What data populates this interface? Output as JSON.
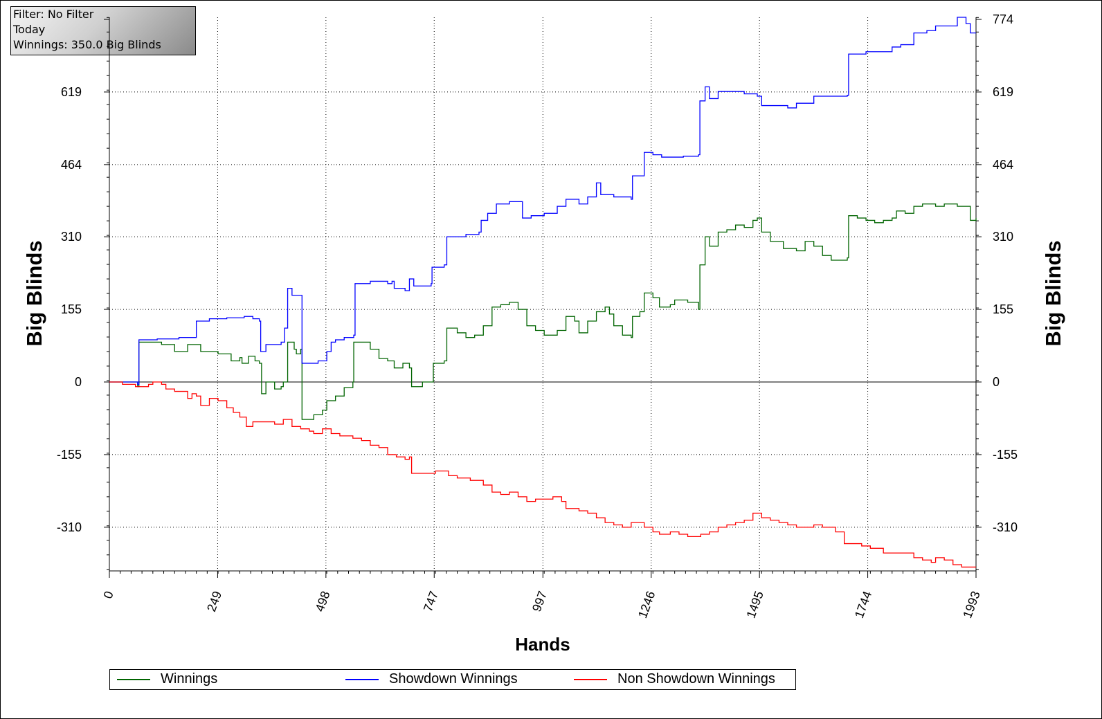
{
  "info": {
    "filter": "Filter: No Filter",
    "period": "Today",
    "winnings": "Winnings: 350.0 Big Blinds"
  },
  "chart_data": {
    "type": "line",
    "title": "",
    "xlabel": "Hands",
    "ylabel": "Big Blinds",
    "xlim": [
      0,
      1993
    ],
    "ylim": [
      -400,
      774
    ],
    "x_ticks": [
      0,
      249,
      498,
      747,
      997,
      1246,
      1495,
      1744,
      1993
    ],
    "y_ticks": [
      -310,
      -155,
      0,
      155,
      310,
      464,
      619,
      774
    ],
    "grid": true,
    "legend_position": "bottom",
    "series": [
      {
        "name": "Winnings",
        "color": "#006400",
        "points": [
          [
            0,
            0
          ],
          [
            65,
            -10
          ],
          [
            68,
            85
          ],
          [
            120,
            80
          ],
          [
            150,
            65
          ],
          [
            180,
            80
          ],
          [
            210,
            65
          ],
          [
            250,
            60
          ],
          [
            280,
            45
          ],
          [
            300,
            52
          ],
          [
            305,
            40
          ],
          [
            320,
            55
          ],
          [
            335,
            45
          ],
          [
            345,
            40
          ],
          [
            350,
            -25
          ],
          [
            360,
            0
          ],
          [
            380,
            -15
          ],
          [
            395,
            -10
          ],
          [
            400,
            0
          ],
          [
            405,
            0
          ],
          [
            410,
            85
          ],
          [
            425,
            70
          ],
          [
            430,
            60
          ],
          [
            440,
            70
          ],
          [
            443,
            -80
          ],
          [
            470,
            -70
          ],
          [
            490,
            -60
          ],
          [
            500,
            -40
          ],
          [
            520,
            -30
          ],
          [
            540,
            -12
          ],
          [
            560,
            0
          ],
          [
            562,
            85
          ],
          [
            600,
            70
          ],
          [
            620,
            50
          ],
          [
            640,
            45
          ],
          [
            655,
            30
          ],
          [
            675,
            40
          ],
          [
            690,
            30
          ],
          [
            695,
            -10
          ],
          [
            720,
            0
          ],
          [
            742,
            0
          ],
          [
            745,
            40
          ],
          [
            770,
            45
          ],
          [
            776,
            115
          ],
          [
            800,
            105
          ],
          [
            820,
            95
          ],
          [
            840,
            100
          ],
          [
            860,
            120
          ],
          [
            880,
            160
          ],
          [
            900,
            165
          ],
          [
            920,
            170
          ],
          [
            940,
            155
          ],
          [
            960,
            120
          ],
          [
            980,
            110
          ],
          [
            1000,
            100
          ],
          [
            1030,
            110
          ],
          [
            1050,
            140
          ],
          [
            1070,
            130
          ],
          [
            1080,
            105
          ],
          [
            1100,
            130
          ],
          [
            1120,
            150
          ],
          [
            1140,
            160
          ],
          [
            1150,
            145
          ],
          [
            1160,
            120
          ],
          [
            1180,
            100
          ],
          [
            1200,
            95
          ],
          [
            1203,
            140
          ],
          [
            1220,
            150
          ],
          [
            1230,
            190
          ],
          [
            1250,
            180
          ],
          [
            1265,
            160
          ],
          [
            1290,
            165
          ],
          [
            1300,
            175
          ],
          [
            1330,
            170
          ],
          [
            1355,
            155
          ],
          [
            1358,
            250
          ],
          [
            1370,
            310
          ],
          [
            1380,
            290
          ],
          [
            1400,
            320
          ],
          [
            1420,
            325
          ],
          [
            1440,
            335
          ],
          [
            1460,
            330
          ],
          [
            1480,
            345
          ],
          [
            1490,
            350
          ],
          [
            1500,
            320
          ],
          [
            1520,
            300
          ],
          [
            1550,
            285
          ],
          [
            1580,
            280
          ],
          [
            1600,
            300
          ],
          [
            1620,
            290
          ],
          [
            1640,
            270
          ],
          [
            1660,
            260
          ],
          [
            1680,
            260
          ],
          [
            1697,
            265
          ],
          [
            1700,
            355
          ],
          [
            1720,
            350
          ],
          [
            1740,
            345
          ],
          [
            1760,
            340
          ],
          [
            1780,
            345
          ],
          [
            1800,
            350
          ],
          [
            1810,
            365
          ],
          [
            1830,
            360
          ],
          [
            1850,
            375
          ],
          [
            1870,
            380
          ],
          [
            1900,
            375
          ],
          [
            1920,
            380
          ],
          [
            1950,
            375
          ],
          [
            1975,
            375
          ],
          [
            1980,
            345
          ],
          [
            1993,
            350
          ]
        ]
      },
      {
        "name": "Showdown Winnings",
        "color": "#0000ff",
        "points": [
          [
            0,
            0
          ],
          [
            65,
            -5
          ],
          [
            68,
            90
          ],
          [
            110,
            92
          ],
          [
            160,
            95
          ],
          [
            200,
            130
          ],
          [
            230,
            135
          ],
          [
            270,
            137
          ],
          [
            300,
            137
          ],
          [
            310,
            140
          ],
          [
            330,
            135
          ],
          [
            345,
            130
          ],
          [
            348,
            65
          ],
          [
            360,
            80
          ],
          [
            380,
            80
          ],
          [
            395,
            85
          ],
          [
            400,
            85
          ],
          [
            403,
            115
          ],
          [
            410,
            200
          ],
          [
            420,
            185
          ],
          [
            430,
            185
          ],
          [
            440,
            185
          ],
          [
            443,
            40
          ],
          [
            480,
            45
          ],
          [
            500,
            65
          ],
          [
            510,
            85
          ],
          [
            520,
            90
          ],
          [
            540,
            95
          ],
          [
            562,
            100
          ],
          [
            565,
            210
          ],
          [
            600,
            215
          ],
          [
            640,
            210
          ],
          [
            650,
            215
          ],
          [
            655,
            200
          ],
          [
            680,
            195
          ],
          [
            690,
            220
          ],
          [
            700,
            205
          ],
          [
            740,
            210
          ],
          [
            742,
            245
          ],
          [
            770,
            250
          ],
          [
            776,
            310
          ],
          [
            820,
            315
          ],
          [
            850,
            320
          ],
          [
            855,
            345
          ],
          [
            870,
            360
          ],
          [
            890,
            380
          ],
          [
            920,
            385
          ],
          [
            945,
            385
          ],
          [
            950,
            350
          ],
          [
            970,
            355
          ],
          [
            1000,
            360
          ],
          [
            1030,
            375
          ],
          [
            1050,
            390
          ],
          [
            1080,
            380
          ],
          [
            1100,
            395
          ],
          [
            1120,
            425
          ],
          [
            1130,
            400
          ],
          [
            1160,
            395
          ],
          [
            1180,
            395
          ],
          [
            1200,
            390
          ],
          [
            1203,
            440
          ],
          [
            1230,
            490
          ],
          [
            1250,
            485
          ],
          [
            1270,
            480
          ],
          [
            1320,
            482
          ],
          [
            1355,
            485
          ],
          [
            1358,
            600
          ],
          [
            1370,
            630
          ],
          [
            1380,
            605
          ],
          [
            1400,
            620
          ],
          [
            1430,
            620
          ],
          [
            1460,
            615
          ],
          [
            1490,
            610
          ],
          [
            1500,
            590
          ],
          [
            1530,
            590
          ],
          [
            1560,
            585
          ],
          [
            1580,
            595
          ],
          [
            1600,
            595
          ],
          [
            1620,
            610
          ],
          [
            1660,
            610
          ],
          [
            1697,
            612
          ],
          [
            1700,
            700
          ],
          [
            1740,
            705
          ],
          [
            1780,
            705
          ],
          [
            1800,
            715
          ],
          [
            1820,
            720
          ],
          [
            1850,
            745
          ],
          [
            1880,
            750
          ],
          [
            1900,
            760
          ],
          [
            1930,
            760
          ],
          [
            1950,
            785
          ],
          [
            1970,
            765
          ],
          [
            1980,
            745
          ],
          [
            1993,
            745
          ]
        ]
      },
      {
        "name": "Non Showdown Winnings",
        "color": "#ff0000",
        "points": [
          [
            0,
            0
          ],
          [
            30,
            -5
          ],
          [
            60,
            -10
          ],
          [
            90,
            -5
          ],
          [
            100,
            0
          ],
          [
            120,
            -5
          ],
          [
            130,
            -15
          ],
          [
            150,
            -20
          ],
          [
            180,
            -35
          ],
          [
            190,
            -25
          ],
          [
            200,
            -30
          ],
          [
            210,
            -50
          ],
          [
            230,
            -35
          ],
          [
            250,
            -40
          ],
          [
            260,
            -40
          ],
          [
            270,
            -55
          ],
          [
            285,
            -65
          ],
          [
            300,
            -75
          ],
          [
            315,
            -95
          ],
          [
            330,
            -85
          ],
          [
            350,
            -85
          ],
          [
            380,
            -90
          ],
          [
            400,
            -80
          ],
          [
            420,
            -95
          ],
          [
            440,
            -100
          ],
          [
            460,
            -105
          ],
          [
            470,
            -110
          ],
          [
            490,
            -100
          ],
          [
            510,
            -110
          ],
          [
            530,
            -115
          ],
          [
            560,
            -120
          ],
          [
            580,
            -125
          ],
          [
            600,
            -135
          ],
          [
            620,
            -140
          ],
          [
            640,
            -155
          ],
          [
            660,
            -160
          ],
          [
            680,
            -165
          ],
          [
            690,
            -160
          ],
          [
            695,
            -195
          ],
          [
            720,
            -195
          ],
          [
            750,
            -190
          ],
          [
            780,
            -200
          ],
          [
            800,
            -205
          ],
          [
            830,
            -210
          ],
          [
            860,
            -220
          ],
          [
            880,
            -235
          ],
          [
            900,
            -240
          ],
          [
            920,
            -235
          ],
          [
            940,
            -245
          ],
          [
            960,
            -255
          ],
          [
            980,
            -250
          ],
          [
            1000,
            -250
          ],
          [
            1020,
            -245
          ],
          [
            1040,
            -255
          ],
          [
            1050,
            -270
          ],
          [
            1080,
            -275
          ],
          [
            1100,
            -280
          ],
          [
            1120,
            -290
          ],
          [
            1140,
            -300
          ],
          [
            1160,
            -305
          ],
          [
            1180,
            -310
          ],
          [
            1200,
            -300
          ],
          [
            1230,
            -310
          ],
          [
            1250,
            -320
          ],
          [
            1265,
            -325
          ],
          [
            1290,
            -320
          ],
          [
            1310,
            -325
          ],
          [
            1330,
            -330
          ],
          [
            1340,
            -330
          ],
          [
            1360,
            -325
          ],
          [
            1380,
            -320
          ],
          [
            1400,
            -310
          ],
          [
            1420,
            -305
          ],
          [
            1440,
            -300
          ],
          [
            1460,
            -295
          ],
          [
            1480,
            -280
          ],
          [
            1490,
            -280
          ],
          [
            1500,
            -290
          ],
          [
            1520,
            -295
          ],
          [
            1540,
            -300
          ],
          [
            1560,
            -305
          ],
          [
            1580,
            -310
          ],
          [
            1600,
            -310
          ],
          [
            1620,
            -305
          ],
          [
            1640,
            -310
          ],
          [
            1660,
            -310
          ],
          [
            1670,
            -320
          ],
          [
            1690,
            -345
          ],
          [
            1710,
            -345
          ],
          [
            1730,
            -350
          ],
          [
            1750,
            -355
          ],
          [
            1780,
            -365
          ],
          [
            1810,
            -365
          ],
          [
            1830,
            -365
          ],
          [
            1850,
            -375
          ],
          [
            1870,
            -380
          ],
          [
            1890,
            -385
          ],
          [
            1900,
            -375
          ],
          [
            1920,
            -380
          ],
          [
            1940,
            -390
          ],
          [
            1960,
            -395
          ],
          [
            1993,
            -395
          ]
        ]
      }
    ]
  }
}
